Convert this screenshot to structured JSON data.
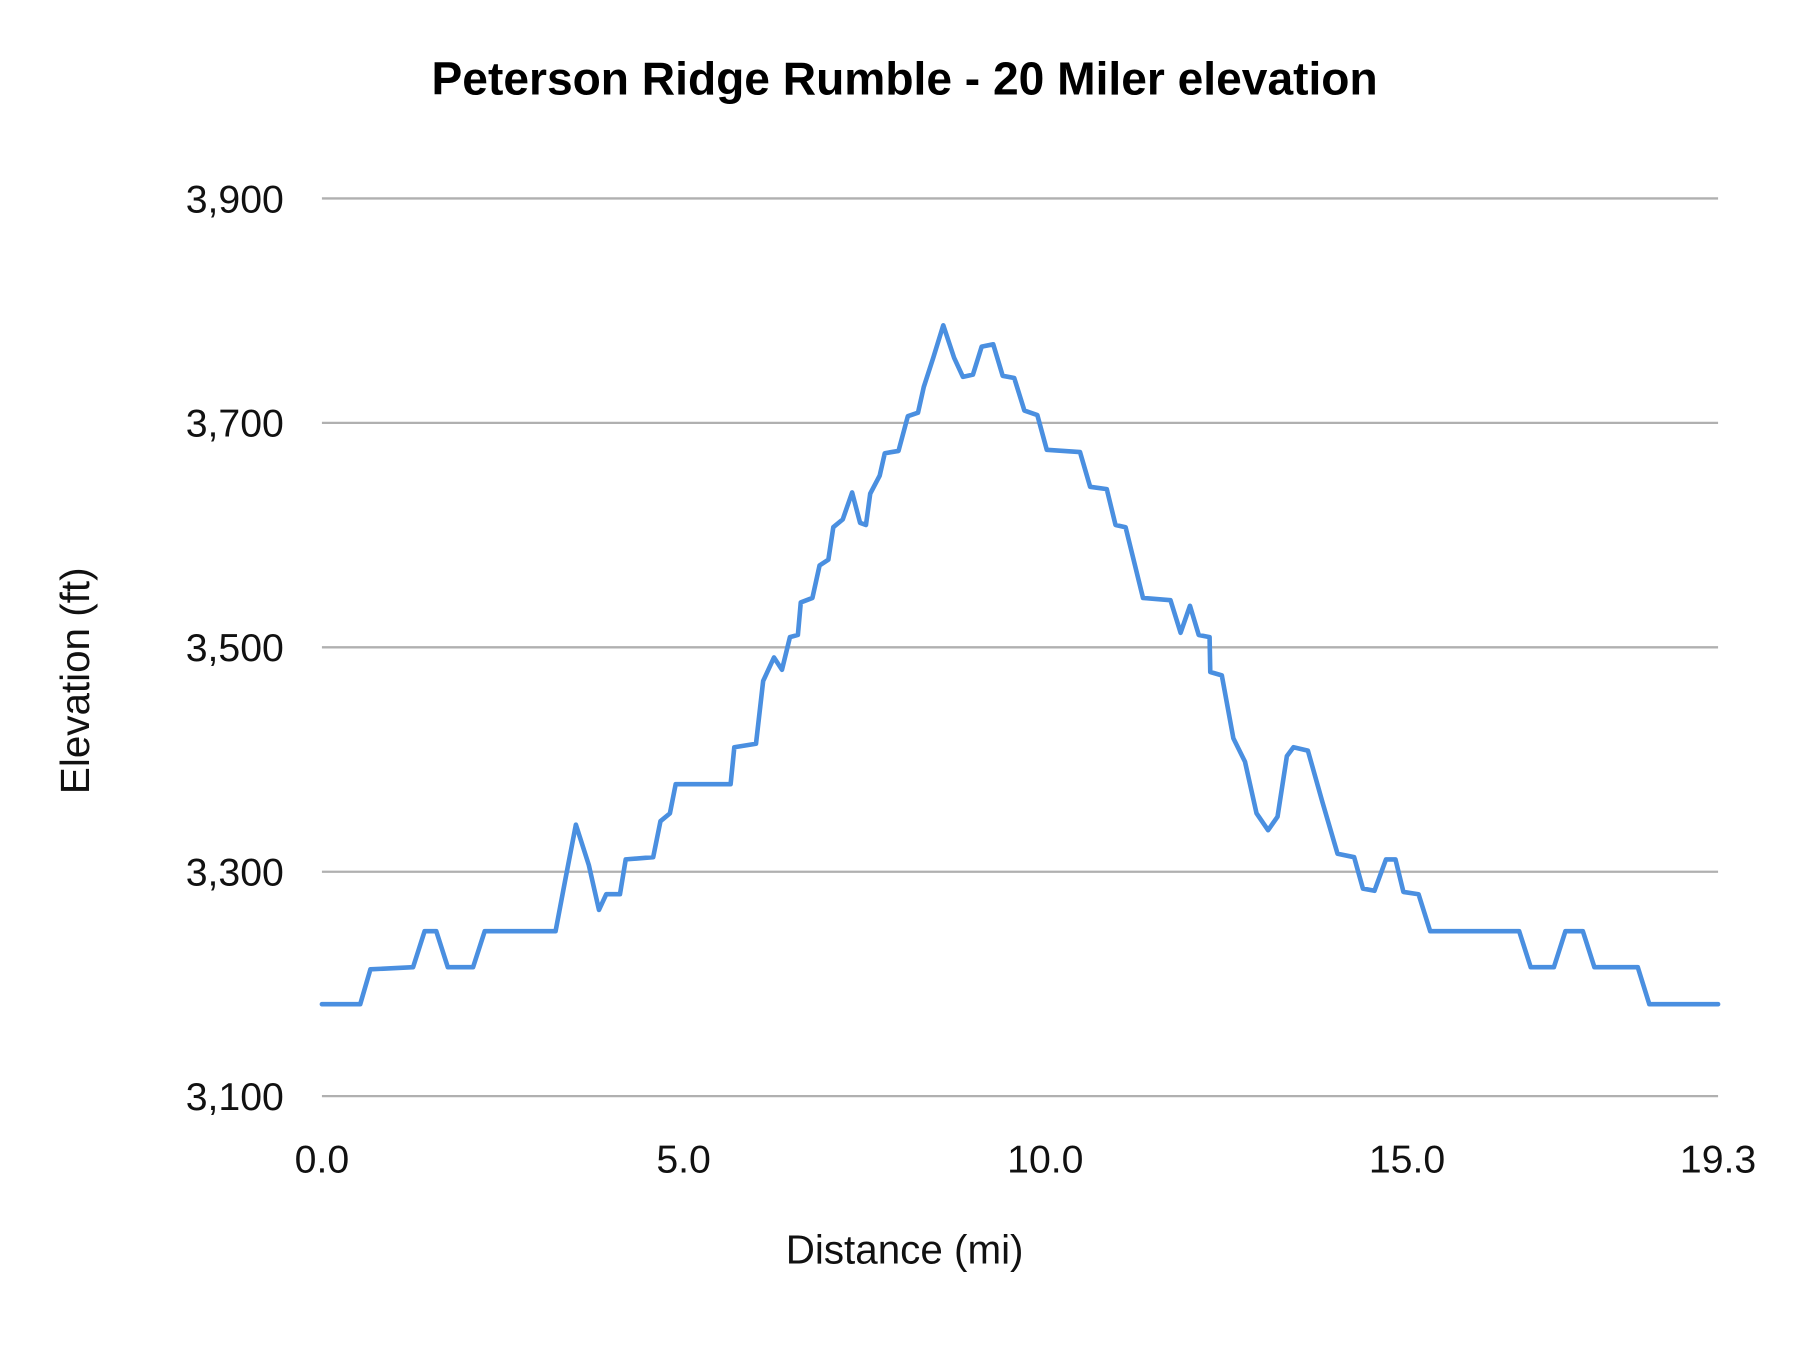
{
  "chart_data": {
    "type": "line",
    "title": "Peterson Ridge Rumble - 20 Miler elevation",
    "xlabel": "Distance (mi)",
    "ylabel": "Elevation (ft)",
    "xlim": [
      0,
      19.3
    ],
    "ylim": [
      3100,
      3900
    ],
    "x_ticks": [
      0,
      5,
      10,
      15,
      19.3
    ],
    "x_tick_labels": [
      "0.0",
      "5.0",
      "10.0",
      "15.0",
      "19.3"
    ],
    "y_ticks": [
      3100,
      3300,
      3500,
      3700,
      3900
    ],
    "y_tick_labels": [
      "3,100",
      "3,300",
      "3,500",
      "3,700",
      "3,900"
    ],
    "grid": "horizontal",
    "legend": "none",
    "color": "#4a8fe0",
    "series": [
      {
        "x": [
          0,
          0.53,
          0.67,
          1.26,
          1.42,
          1.58,
          1.74,
          2.09,
          2.25,
          3.23,
          3.37,
          3.51,
          3.69,
          3.83,
          3.93,
          4.12,
          4.2,
          4.58,
          4.68,
          4.81,
          4.89,
          5.65,
          5.7,
          6.0,
          6.1,
          6.25,
          6.36,
          6.47,
          6.58,
          6.62,
          6.78,
          6.88,
          7.0,
          7.07,
          7.2,
          7.33,
          7.44,
          7.52,
          7.58,
          7.71,
          7.78,
          7.97,
          8.1,
          8.24,
          8.32,
          8.45,
          8.59,
          8.74,
          8.86,
          9.0,
          9.12,
          9.28,
          9.41,
          9.57,
          9.71,
          9.89,
          10.02,
          10.48,
          10.62,
          10.85,
          10.97,
          11.11,
          11.35,
          11.73,
          11.87,
          12.0,
          12.12,
          12.27,
          12.28,
          12.44,
          12.6,
          12.76,
          12.92,
          13.08,
          13.21,
          13.34,
          13.43,
          13.63,
          13.83,
          14.04,
          14.27,
          14.39,
          14.55,
          14.71,
          14.84,
          14.95,
          15.16,
          15.32,
          16.55,
          16.71,
          17.03,
          17.19,
          17.43,
          17.59,
          18.19,
          18.35,
          19.3
        ],
        "y": [
          3182,
          3182,
          3213,
          3215,
          3247,
          3247,
          3215,
          3215,
          3247,
          3247,
          3295,
          3342,
          3306,
          3266,
          3280,
          3280,
          3311,
          3313,
          3345,
          3352,
          3378,
          3378,
          3411,
          3414,
          3470,
          3491,
          3480,
          3509,
          3511,
          3540,
          3544,
          3573,
          3578,
          3607,
          3614,
          3638,
          3611,
          3609,
          3637,
          3653,
          3673,
          3675,
          3706,
          3709,
          3732,
          3758,
          3787,
          3758,
          3741,
          3743,
          3768,
          3770,
          3742,
          3740,
          3711,
          3707,
          3676,
          3674,
          3643,
          3641,
          3609,
          3607,
          3544,
          3542,
          3513,
          3537,
          3511,
          3509,
          3478,
          3475,
          3419,
          3398,
          3352,
          3337,
          3349,
          3403,
          3411,
          3408,
          3362,
          3316,
          3313,
          3285,
          3283,
          3311,
          3311,
          3282,
          3280,
          3247,
          3247,
          3215,
          3215,
          3247,
          3247,
          3215,
          3215,
          3182,
          3182
        ]
      }
    ]
  }
}
